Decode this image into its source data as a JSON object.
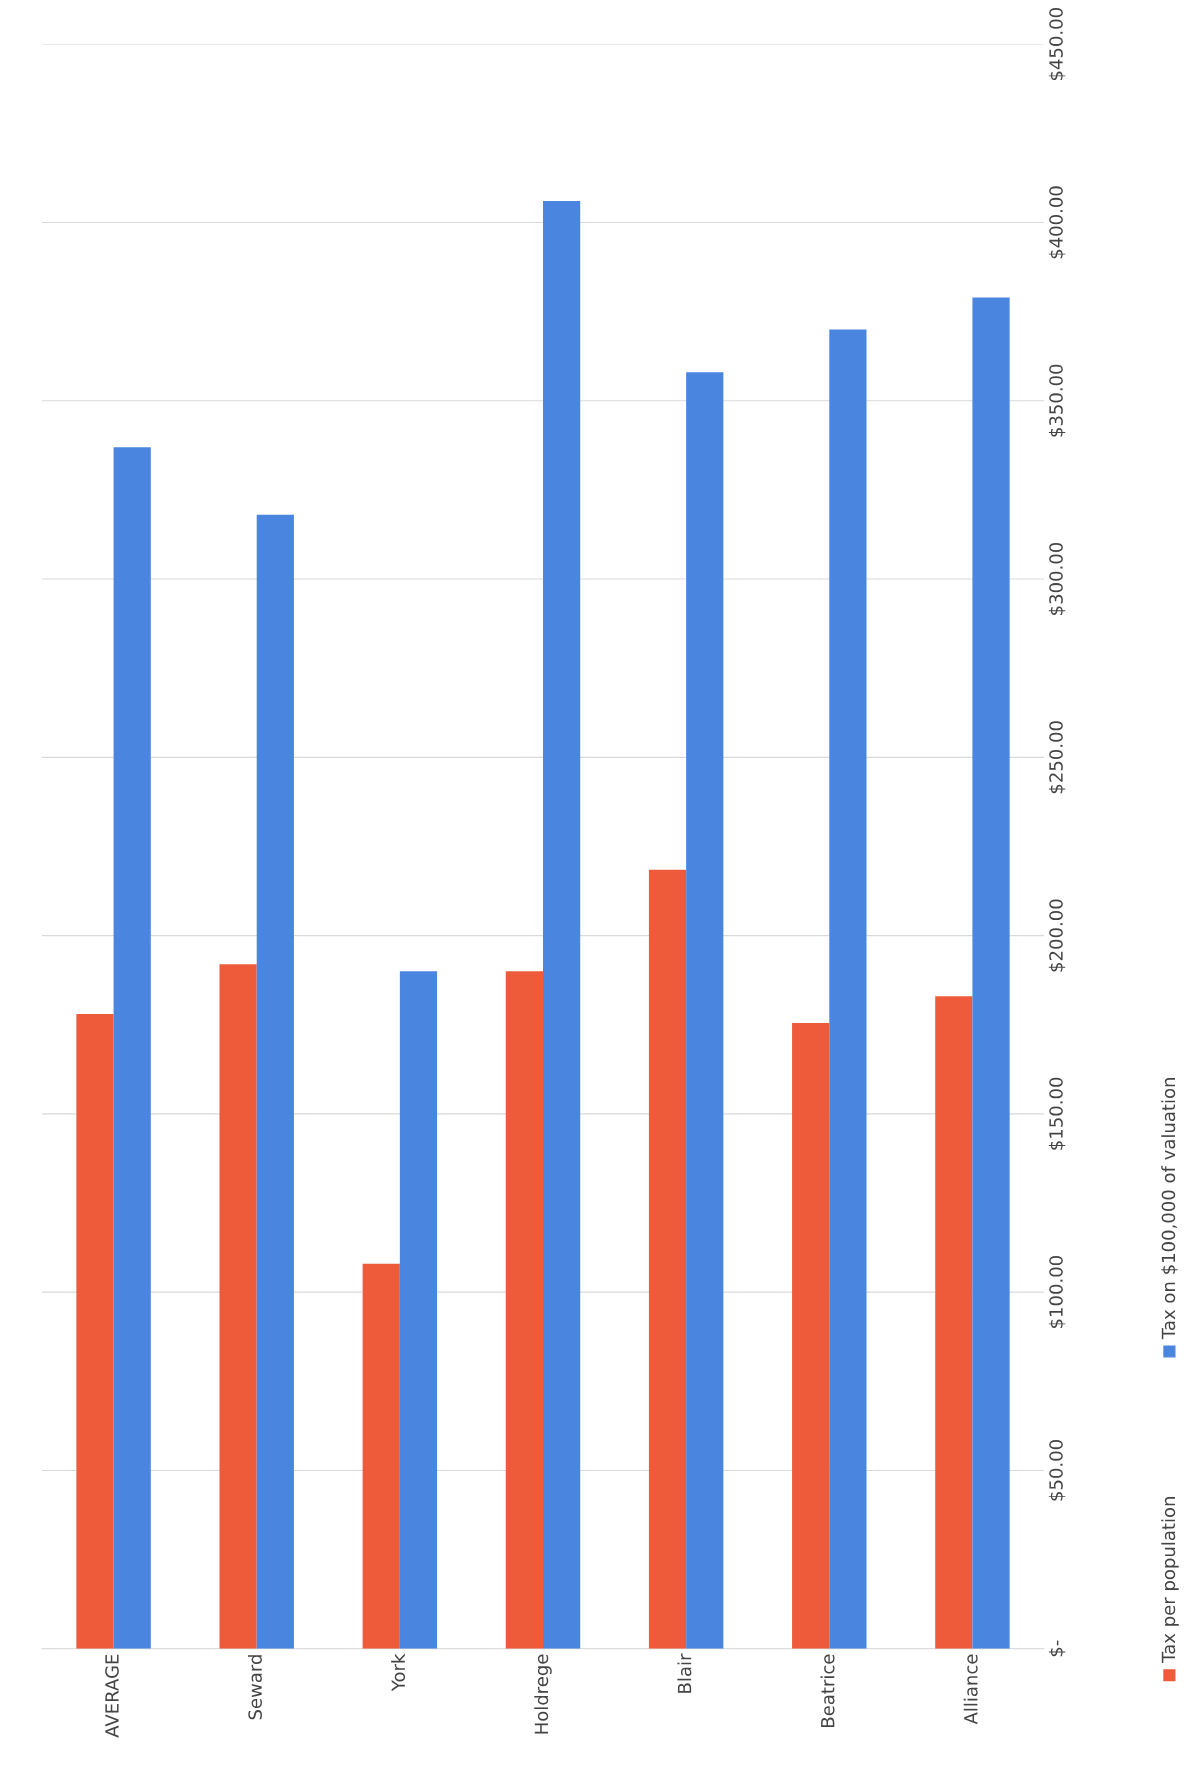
{
  "chart_data": {
    "type": "bar",
    "categories": [
      "AVERAGE",
      "Seward",
      "York",
      "Holdrege",
      "Blair",
      "Beatrice",
      "Alliance"
    ],
    "series": [
      {
        "name": "Tax per population",
        "color": "#ed5b3b",
        "values": [
          178,
          192,
          108,
          190,
          218.5,
          175.5,
          183
        ]
      },
      {
        "name": "Tax on $100,000 of valuation",
        "color": "#4a86e0",
        "values": [
          337,
          318,
          190,
          406,
          358,
          370,
          379
        ]
      }
    ],
    "ylim": [
      0,
      450
    ],
    "yticks": [
      {
        "value": 0,
        "label": "$-"
      },
      {
        "value": 50,
        "label": "$50.00"
      },
      {
        "value": 100,
        "label": "$100.00"
      },
      {
        "value": 150,
        "label": "$150.00"
      },
      {
        "value": 200,
        "label": "$200.00"
      },
      {
        "value": 250,
        "label": "$250.00"
      },
      {
        "value": 300,
        "label": "$300.00"
      },
      {
        "value": 350,
        "label": "$350.00"
      },
      {
        "value": 400,
        "label": "$400.00"
      },
      {
        "value": 450,
        "label": "$450.00"
      }
    ],
    "grid": "y",
    "legend": "right"
  }
}
